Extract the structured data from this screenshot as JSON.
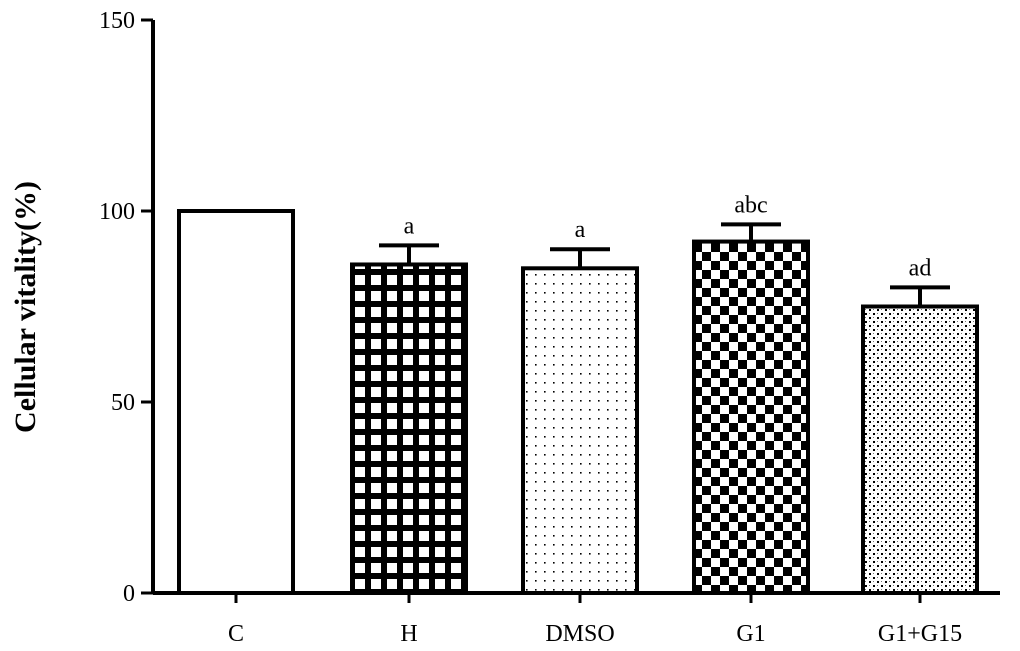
{
  "chart_data": {
    "type": "bar",
    "title": "",
    "xlabel": "",
    "ylabel": "Cellular vitality(%)",
    "ylim": [
      0,
      150
    ],
    "yticks": [
      "0",
      "50",
      "100",
      "150"
    ],
    "categories": [
      "C",
      "H",
      "DMSO",
      "G1",
      "G1+G15"
    ],
    "values": [
      100,
      86,
      85,
      92,
      75
    ],
    "errors": [
      0,
      5,
      5,
      4.5,
      5
    ],
    "significance": [
      "",
      "a",
      "a",
      "abc",
      "ad"
    ],
    "patterns": [
      "none",
      "grid",
      "dots",
      "checker",
      "speckle"
    ],
    "colors": {
      "bar_stroke": "#000000",
      "fill": "#ffffff"
    }
  }
}
